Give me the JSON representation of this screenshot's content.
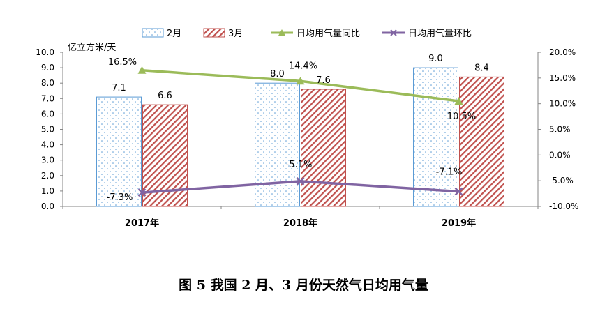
{
  "caption": "图 5  我国 2 月、3 月份天然气日均用气量",
  "chart_data": {
    "type": "bar",
    "categories": [
      "2017年",
      "2018年",
      "2019年"
    ],
    "y_left_unit": "亿立方米/天",
    "y_left_lim": [
      0,
      10
    ],
    "y_left_ticks": [
      "0.0",
      "1.0",
      "2.0",
      "3.0",
      "4.0",
      "5.0",
      "6.0",
      "7.0",
      "8.0",
      "9.0",
      "10.0"
    ],
    "y_right_lim": [
      -10,
      20
    ],
    "y_right_ticks": [
      "-10.0%",
      "-5.0%",
      "0.0%",
      "5.0%",
      "10.0%",
      "15.0%",
      "20.0%"
    ],
    "bar_series": [
      {
        "name": "2月",
        "values": [
          7.1,
          8.0,
          9.0
        ],
        "labels": [
          "7.1",
          "8.0",
          "9.0"
        ],
        "color": "#5b9bd5",
        "pattern": "dots"
      },
      {
        "name": "3月",
        "values": [
          6.6,
          7.6,
          8.4
        ],
        "labels": [
          "6.6",
          "7.6",
          "8.4"
        ],
        "color": "#c0504d",
        "pattern": "hatch"
      }
    ],
    "line_series": [
      {
        "name": "日均用气量同比",
        "values": [
          16.5,
          14.4,
          10.5
        ],
        "labels": [
          "16.5%",
          "14.4%",
          "10.5%"
        ],
        "color": "#9bbb59",
        "marker": "triangle"
      },
      {
        "name": "日均用气量环比",
        "values": [
          -7.3,
          -5.1,
          -7.1
        ],
        "labels": [
          "-7.3%",
          "-5.1%",
          "-7.1%"
        ],
        "color": "#8064a2",
        "marker": "x"
      }
    ],
    "legend_position": "top",
    "grid": false
  }
}
